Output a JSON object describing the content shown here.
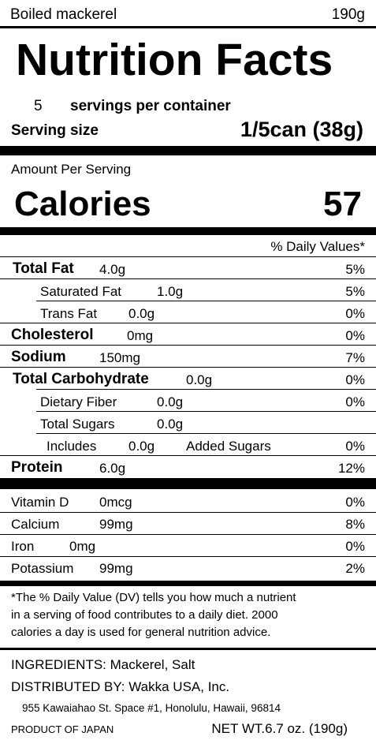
{
  "header": {
    "product": "Boiled mackerel",
    "net_weight": "190g"
  },
  "title": "Nutrition Facts",
  "servings": {
    "count": "5",
    "label": "servings per container"
  },
  "serving_size": {
    "label": "Serving size",
    "value": "1/5can (38g)"
  },
  "amount_per_serving": "Amount Per Serving",
  "calories": {
    "label": "Calories",
    "value": "57"
  },
  "daily_values_header": "% Daily Values*",
  "nutrients": [
    {
      "name": "Total Fat",
      "amount": "4.0g",
      "dv": "5%"
    },
    {
      "name": "Saturated Fat",
      "amount": "1.0g",
      "dv": "5%"
    },
    {
      "name": "Trans Fat",
      "amount": "0.0g",
      "dv": "0%"
    },
    {
      "name": "Cholesterol",
      "amount": "0mg",
      "dv": "0%"
    },
    {
      "name": "Sodium",
      "amount": "150mg",
      "dv": "7%"
    },
    {
      "name": "Total Carbohydrate",
      "amount": "0.0g",
      "dv": "0%"
    },
    {
      "name": "Dietary Fiber",
      "amount": "0.0g",
      "dv": "0%"
    },
    {
      "name": "Total Sugars",
      "amount": "0.0g",
      "dv": ""
    },
    {
      "name": "Includes",
      "amount": "0.0g",
      "extra": "Added Sugars",
      "dv": "0%"
    },
    {
      "name": "Protein",
      "amount": "6.0g",
      "dv": "12%"
    }
  ],
  "vitamins": [
    {
      "name": "Vitamin D",
      "amount": "0mcg",
      "dv": "0%"
    },
    {
      "name": "Calcium",
      "amount": "99mg",
      "dv": "8%"
    },
    {
      "name": "Iron",
      "amount": "0mg",
      "dv": "0%"
    },
    {
      "name": "Potassium",
      "amount": "99mg",
      "dv": "2%"
    }
  ],
  "footnote": [
    "*The % Daily Value (DV) tells you how much a nutrient",
    "in a serving of food contributes to a daily diet. 2000",
    "calories a day is used for general nutrition advice."
  ],
  "ingredients": "INGREDIENTS: Mackerel, Salt",
  "distributor": "DISTRIBUTED BY: Wakka USA, Inc.",
  "address": "955 Kawaiahao St. Space #1, Honolulu, Hawaii, 96814",
  "origin": "PRODUCT OF JAPAN",
  "net_wt": "NET WT.6.7 oz.  (190g)"
}
